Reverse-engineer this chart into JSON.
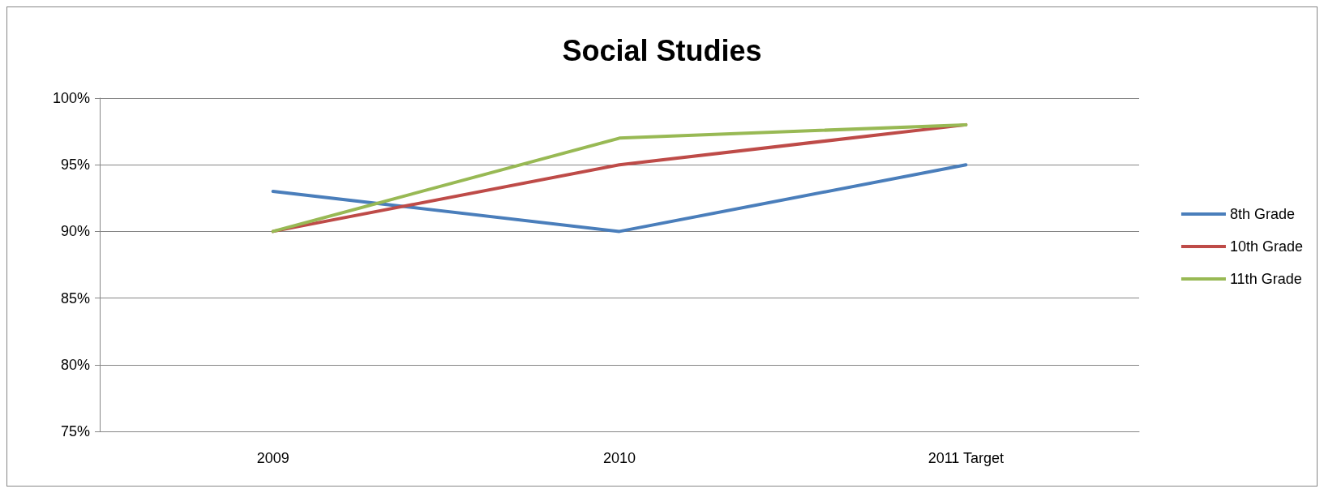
{
  "chart_data": {
    "type": "line",
    "title": "Social Studies",
    "categories": [
      "2009",
      "2010",
      "2011 Target"
    ],
    "series": [
      {
        "name": "8th Grade",
        "color": "#4a7ebb",
        "values": [
          93,
          90,
          95
        ]
      },
      {
        "name": "10th Grade",
        "color": "#be4b48",
        "values": [
          90,
          95,
          98
        ]
      },
      {
        "name": "11th Grade",
        "color": "#98b954",
        "values": [
          90,
          97,
          98
        ]
      }
    ],
    "ylim": [
      75,
      100
    ],
    "yticks": [
      {
        "value": 75,
        "label": "75%"
      },
      {
        "value": 80,
        "label": "80%"
      },
      {
        "value": 85,
        "label": "85%"
      },
      {
        "value": 90,
        "label": "90%"
      },
      {
        "value": 95,
        "label": "95%"
      },
      {
        "value": 100,
        "label": "100%"
      }
    ],
    "grid": "y",
    "legend": "right",
    "marker": "none",
    "line_style": "solid"
  }
}
